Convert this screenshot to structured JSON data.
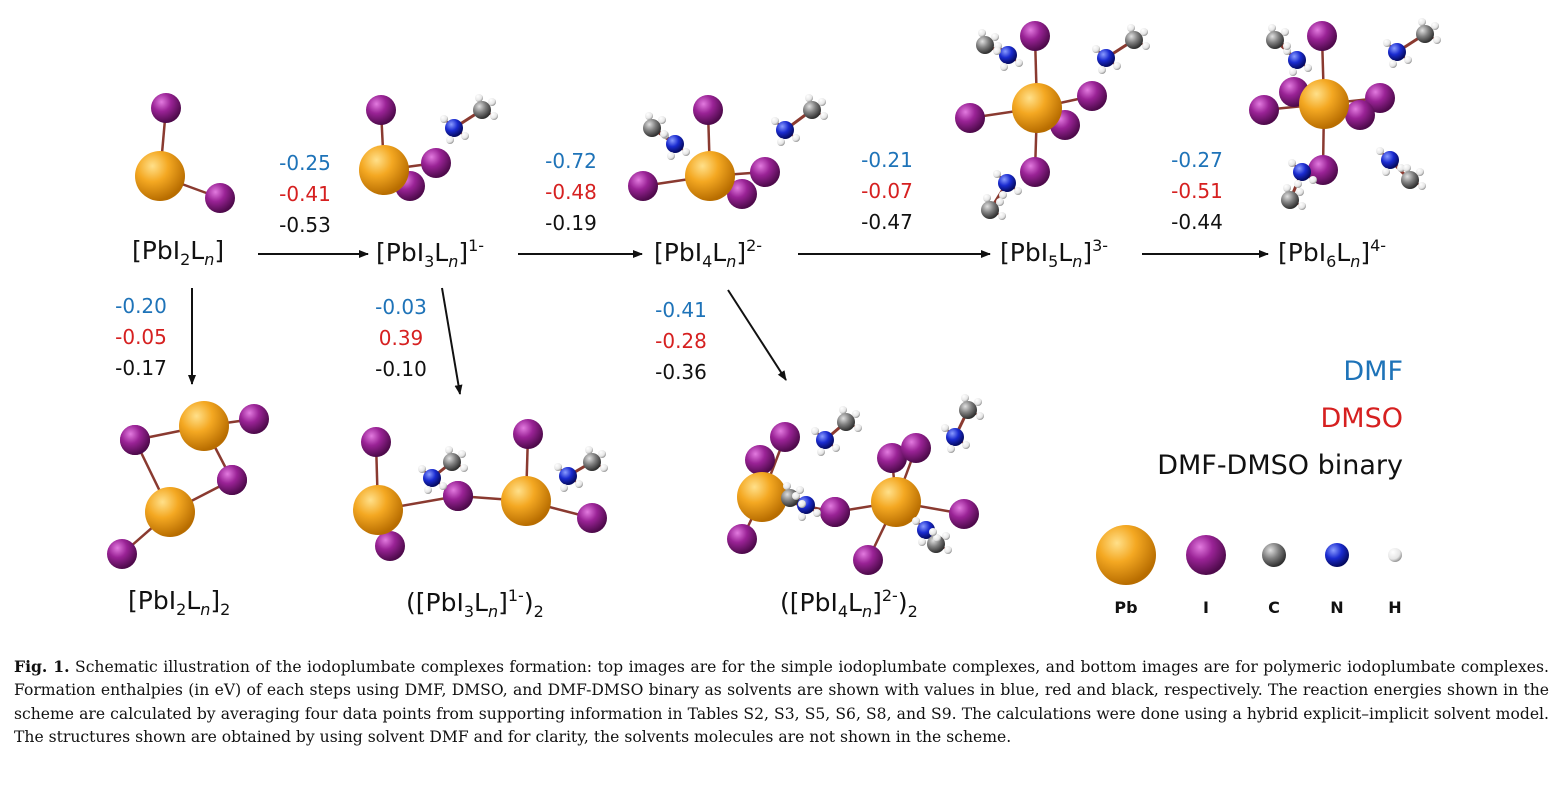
{
  "scheme": {
    "species": {
      "pbi2": "[PbI2Ln]",
      "pbi3": "[PbI3Ln]1-",
      "pbi4": "[PbI4Ln]2-",
      "pbi5": "[PbI5Ln]3-",
      "pbi6": "[PbI6Ln]4-",
      "pbi2_dimer": "[PbI2Ln]2",
      "pbi3_dimer": "([PbI3Ln]1-)2",
      "pbi4_dimer": "([PbI4Ln]2-)2"
    },
    "steps": [
      {
        "id": "pbi2_to_pbi3",
        "dmf": "-0.25",
        "dmso": "-0.41",
        "binary": "-0.53"
      },
      {
        "id": "pbi3_to_pbi4",
        "dmf": "-0.72",
        "dmso": "-0.48",
        "binary": "-0.19"
      },
      {
        "id": "pbi4_to_pbi5",
        "dmf": "-0.21",
        "dmso": "-0.07",
        "binary": "-0.47"
      },
      {
        "id": "pbi5_to_pbi6",
        "dmf": "-0.27",
        "dmso": "-0.51",
        "binary": "-0.44"
      },
      {
        "id": "pbi2_to_dimer",
        "dmf": "-0.20",
        "dmso": "-0.05",
        "binary": "-0.17"
      },
      {
        "id": "pbi3_to_dimer",
        "dmf": "-0.03",
        "dmso": "0.39",
        "binary": "-0.10"
      },
      {
        "id": "pbi4_to_dimer",
        "dmf": "-0.41",
        "dmso": "-0.28",
        "binary": "-0.36"
      }
    ]
  },
  "legend": {
    "solvents": {
      "dmf": "DMF",
      "dmso": "DMSO",
      "binary": "DMF-DMSO binary"
    },
    "atoms": {
      "pb": "Pb",
      "i": "I",
      "c": "C",
      "n": "N",
      "h": "H"
    }
  },
  "colors": {
    "dmf": "#1e73b8",
    "dmso": "#d62020",
    "binary": "#111111",
    "pb": "#f0a020",
    "i": "#8e1f8c",
    "c": "#7a7a7a",
    "n": "#1a2bd0",
    "h": "#ffffff",
    "bond": "#8a3a30"
  },
  "caption": {
    "label": "Fig. 1.",
    "text": "Schematic illustration of the iodoplumbate complexes formation: top images are for the simple iodoplumbate complexes, and bottom images are for polymeric iodoplumbate complexes. Formation enthalpies (in eV) of each steps using DMF, DMSO, and DMF-DMSO binary as solvents are shown with values in blue, red and black, respectively. The reaction energies shown in the scheme are calculated by averaging four data points from supporting information in Tables S2, S3, S5, S6, S8, and S9. The calculations were done using a hybrid explicit–implicit solvent model. The structures shown are obtained by using solvent DMF and for clarity, the solvents molecules are not shown in the scheme."
  }
}
